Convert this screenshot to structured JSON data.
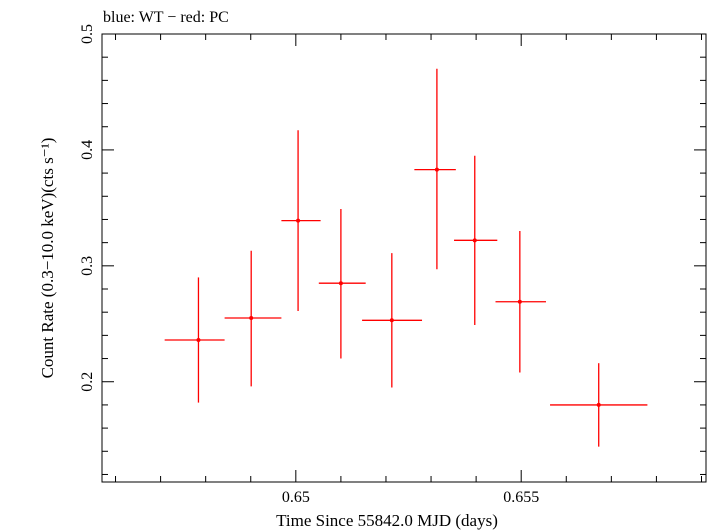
{
  "chart_data": {
    "type": "scatter",
    "title": "blue: WT − red: PC",
    "xlabel": "Time Since 55842.0 MJD (days)",
    "ylabel": "Count Rate (0.3−10.0 keV)(cts s⁻¹)",
    "xlim": [
      0.6457,
      0.6591
    ],
    "ylim": [
      0.1135,
      0.5
    ],
    "x_ticks": [
      0.65,
      0.655
    ],
    "x_tick_labels": [
      "0.65",
      "0.655"
    ],
    "y_ticks": [
      0.2,
      0.3,
      0.4,
      0.5
    ],
    "y_tick_labels": [
      "0.2",
      "0.3",
      "0.4",
      "0.5"
    ],
    "grid": false,
    "series": [
      {
        "color": "#ff0000",
        "points": [
          {
            "x": 0.64784,
            "x_lo": 0.64709,
            "x_hi": 0.64842,
            "y": 0.236,
            "y_lo": 0.182,
            "y_hi": 0.29
          },
          {
            "x": 0.64901,
            "x_lo": 0.64842,
            "x_hi": 0.64968,
            "y": 0.255,
            "y_lo": 0.196,
            "y_hi": 0.313
          },
          {
            "x": 0.65005,
            "x_lo": 0.64968,
            "x_hi": 0.65055,
            "y": 0.339,
            "y_lo": 0.261,
            "y_hi": 0.417
          },
          {
            "x": 0.651,
            "x_lo": 0.65051,
            "x_hi": 0.65155,
            "y": 0.285,
            "y_lo": 0.22,
            "y_hi": 0.349
          },
          {
            "x": 0.65213,
            "x_lo": 0.65147,
            "x_hi": 0.6528,
            "y": 0.253,
            "y_lo": 0.195,
            "y_hi": 0.311
          },
          {
            "x": 0.65313,
            "x_lo": 0.65263,
            "x_hi": 0.65355,
            "y": 0.383,
            "y_lo": 0.297,
            "y_hi": 0.47
          },
          {
            "x": 0.65397,
            "x_lo": 0.65351,
            "x_hi": 0.65447,
            "y": 0.322,
            "y_lo": 0.249,
            "y_hi": 0.395
          },
          {
            "x": 0.65497,
            "x_lo": 0.65443,
            "x_hi": 0.65555,
            "y": 0.269,
            "y_lo": 0.208,
            "y_hi": 0.33
          },
          {
            "x": 0.65672,
            "x_lo": 0.65564,
            "x_hi": 0.6578,
            "y": 0.18,
            "y_lo": 0.144,
            "y_hi": 0.216
          }
        ]
      }
    ]
  }
}
